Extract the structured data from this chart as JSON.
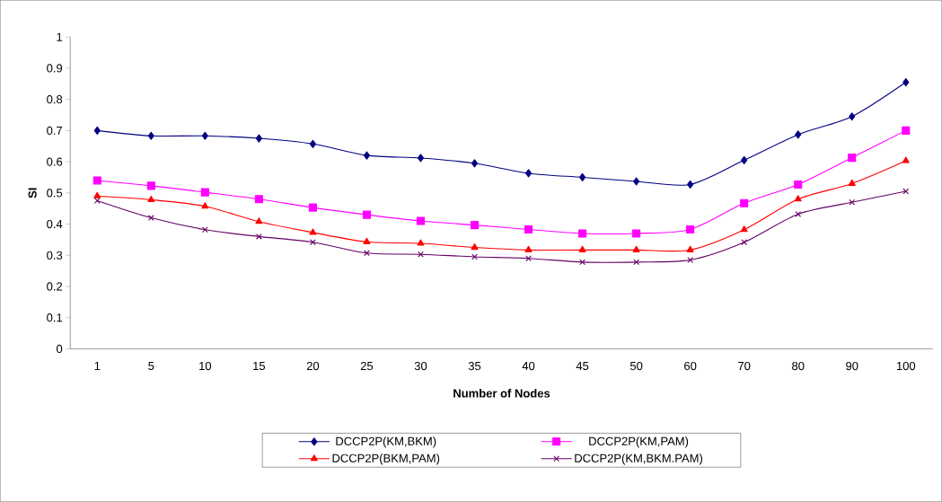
{
  "chart_data": {
    "type": "line",
    "xlabel": "Number of Nodes",
    "ylabel": "SI",
    "categories": [
      "1",
      "5",
      "10",
      "15",
      "20",
      "25",
      "30",
      "35",
      "40",
      "45",
      "50",
      "60",
      "70",
      "80",
      "90",
      "100"
    ],
    "series": [
      {
        "name": "DCCP2P(KM,BKM)",
        "color": "#000080",
        "marker": "diamond",
        "values": [
          0.7,
          0.683,
          0.683,
          0.675,
          0.657,
          0.62,
          0.612,
          0.595,
          0.563,
          0.55,
          0.537,
          0.527,
          0.605,
          0.687,
          0.745,
          0.855
        ]
      },
      {
        "name": "DCCP2P(KM,PAM)",
        "color": "#ff00ff",
        "marker": "square",
        "values": [
          0.54,
          0.523,
          0.502,
          0.48,
          0.453,
          0.43,
          0.41,
          0.397,
          0.383,
          0.37,
          0.37,
          0.383,
          0.467,
          0.527,
          0.613,
          0.7
        ]
      },
      {
        "name": "DCCP2P(BKM,PAM)",
        "color": "#ff0000",
        "marker": "triangle",
        "values": [
          0.49,
          0.478,
          0.457,
          0.408,
          0.373,
          0.343,
          0.338,
          0.325,
          0.317,
          0.317,
          0.317,
          0.317,
          0.382,
          0.48,
          0.53,
          0.603
        ]
      },
      {
        "name": "DCCP2P(KM,BKM.PAM)",
        "color": "#660066",
        "marker": "cross",
        "values": [
          0.475,
          0.42,
          0.382,
          0.36,
          0.342,
          0.307,
          0.303,
          0.295,
          0.29,
          0.278,
          0.278,
          0.285,
          0.342,
          0.432,
          0.47,
          0.505
        ]
      }
    ],
    "ylim": [
      0,
      1
    ],
    "yticks": [
      0,
      0.1,
      0.2,
      0.3,
      0.4,
      0.5,
      0.6,
      0.7,
      0.8,
      0.9,
      1
    ],
    "grid": false,
    "legend": "bottom",
    "line_style": "solid"
  }
}
